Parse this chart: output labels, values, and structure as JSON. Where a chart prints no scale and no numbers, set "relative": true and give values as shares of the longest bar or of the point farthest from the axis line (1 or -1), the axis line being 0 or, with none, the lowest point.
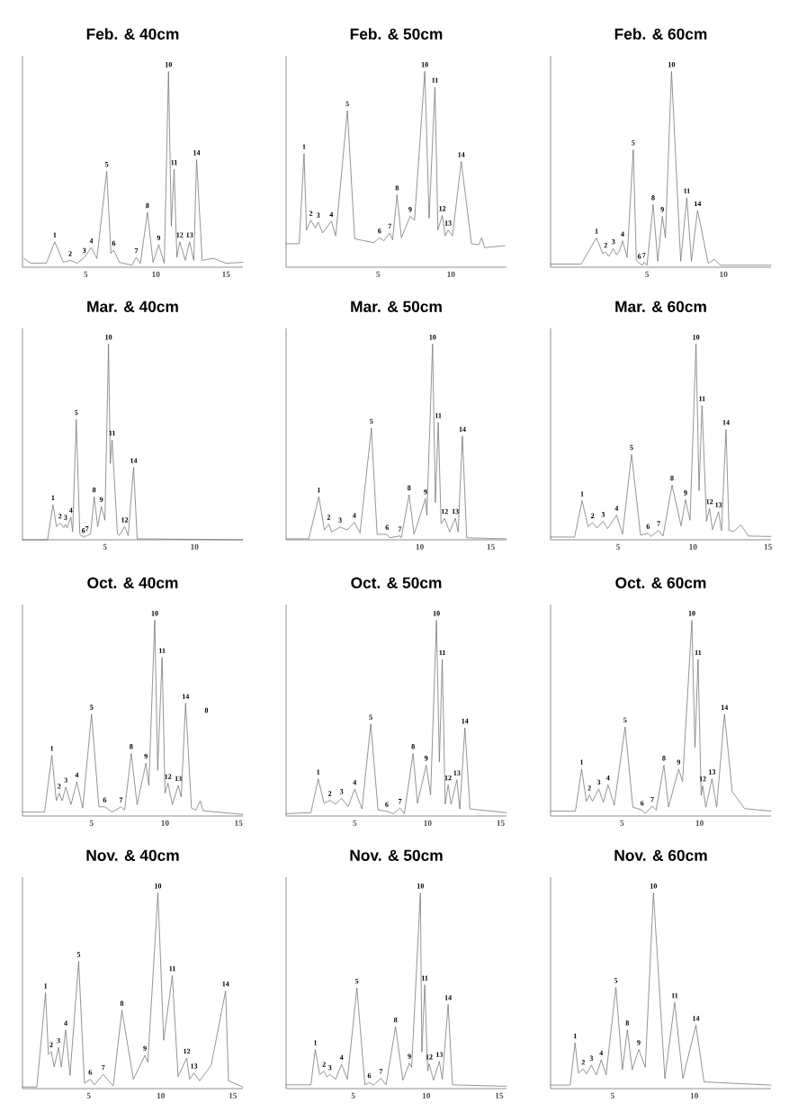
{
  "chart_data": [
    {
      "type": "line",
      "title": "Feb. & 40cm",
      "relative": true,
      "xlim": [
        0.5,
        16.2
      ],
      "xticks": [
        5,
        10,
        15
      ],
      "color": "#6e6e6e",
      "x": [
        0.6,
        1.1,
        2.2,
        2.8,
        3.4,
        3.9,
        4.4,
        4.9,
        5.4,
        5.8,
        6.5,
        6.8,
        7.0,
        7.4,
        8.3,
        8.6,
        8.9,
        9.4,
        9.8,
        10.2,
        10.6,
        10.9,
        11.1,
        11.3,
        11.5,
        11.7,
        12.1,
        12.4,
        12.7,
        12.9,
        13.3,
        14.1,
        15.0,
        16.2
      ],
      "values": [
        0.045,
        0.02,
        0.02,
        0.13,
        0.025,
        0.035,
        0.02,
        0.05,
        0.1,
        0.045,
        0.49,
        0.07,
        0.087,
        0.025,
        0.01,
        0.05,
        0.02,
        0.28,
        0.025,
        0.115,
        0.02,
        1.0,
        0.21,
        0.5,
        0.05,
        0.13,
        0.035,
        0.13,
        0.035,
        0.55,
        0.035,
        0.045,
        0.02,
        0.025
      ],
      "annotations": [
        {
          "text": "1",
          "x": 2.8,
          "y": 0.13
        },
        {
          "text": "2",
          "x": 3.9,
          "y": 0.035
        },
        {
          "text": "3",
          "x": 4.9,
          "y": 0.05
        },
        {
          "text": "4",
          "x": 5.4,
          "y": 0.1
        },
        {
          "text": "5",
          "x": 6.5,
          "y": 0.49
        },
        {
          "text": "6",
          "x": 7.0,
          "y": 0.087
        },
        {
          "text": "7",
          "x": 8.6,
          "y": 0.05
        },
        {
          "text": "8",
          "x": 9.4,
          "y": 0.28
        },
        {
          "text": "9",
          "x": 10.2,
          "y": 0.115
        },
        {
          "text": "10",
          "x": 10.9,
          "y": 1.0
        },
        {
          "text": "11",
          "x": 11.3,
          "y": 0.5
        },
        {
          "text": "12",
          "x": 11.7,
          "y": 0.13
        },
        {
          "text": "13",
          "x": 12.4,
          "y": 0.13
        },
        {
          "text": "14",
          "x": 12.9,
          "y": 0.55
        }
      ]
    },
    {
      "type": "line",
      "title": "Feb. & 50cm",
      "relative": true,
      "xlim": [
        -1.3,
        13.8
      ],
      "xticks": [
        5,
        10
      ],
      "color": "#6e6e6e",
      "x": [
        -1.3,
        -0.4,
        -0.07,
        0.1,
        0.4,
        0.7,
        0.9,
        1.2,
        1.8,
        2.1,
        2.9,
        3.4,
        4.7,
        5.1,
        5.4,
        5.8,
        6.0,
        6.3,
        6.6,
        7.2,
        7.5,
        8.2,
        8.5,
        8.9,
        9.1,
        9.4,
        9.6,
        9.8,
        10.1,
        10.7,
        11.4,
        11.9,
        12.1,
        12.3,
        13.7
      ],
      "values": [
        0.12,
        0.12,
        0.58,
        0.19,
        0.24,
        0.2,
        0.23,
        0.175,
        0.235,
        0.16,
        0.8,
        0.145,
        0.125,
        0.15,
        0.135,
        0.175,
        0.14,
        0.37,
        0.15,
        0.26,
        0.24,
        1.0,
        0.25,
        0.92,
        0.19,
        0.265,
        0.16,
        0.19,
        0.16,
        0.54,
        0.12,
        0.115,
        0.15,
        0.1,
        0.11
      ],
      "annotations": [
        {
          "text": "1",
          "x": -0.07,
          "y": 0.58
        },
        {
          "text": "2",
          "x": 0.4,
          "y": 0.24
        },
        {
          "text": "3",
          "x": 0.9,
          "y": 0.23
        },
        {
          "text": "4",
          "x": 1.8,
          "y": 0.235
        },
        {
          "text": "5",
          "x": 2.9,
          "y": 0.8
        },
        {
          "text": "6",
          "x": 5.1,
          "y": 0.15
        },
        {
          "text": "7",
          "x": 5.8,
          "y": 0.175
        },
        {
          "text": "8",
          "x": 6.3,
          "y": 0.37
        },
        {
          "text": "9",
          "x": 7.2,
          "y": 0.26
        },
        {
          "text": "10",
          "x": 8.2,
          "y": 1.0
        },
        {
          "text": "11",
          "x": 8.9,
          "y": 0.92
        },
        {
          "text": "12",
          "x": 9.4,
          "y": 0.265
        },
        {
          "text": "13",
          "x": 9.8,
          "y": 0.19
        },
        {
          "text": "14",
          "x": 10.7,
          "y": 0.54
        }
      ]
    },
    {
      "type": "line",
      "title": "Feb. & 60cm",
      "relative": true,
      "xlim": [
        -1.3,
        13.1
      ],
      "xticks": [
        5,
        10
      ],
      "color": "#6e6e6e",
      "x": [
        -1.3,
        0.7,
        1.7,
        2.1,
        2.3,
        2.5,
        2.8,
        3.0,
        3.2,
        3.4,
        3.7,
        4.1,
        4.3,
        4.5,
        4.7,
        4.8,
        5.0,
        5.4,
        5.7,
        6.0,
        6.2,
        6.6,
        7.2,
        7.6,
        7.9,
        8.3,
        9.0,
        9.4,
        9.8,
        13.1
      ],
      "values": [
        0.016,
        0.016,
        0.15,
        0.07,
        0.077,
        0.055,
        0.095,
        0.063,
        0.082,
        0.135,
        0.05,
        0.6,
        0.037,
        0.02,
        0.01,
        0.026,
        0.01,
        0.32,
        0.03,
        0.26,
        0.15,
        1.0,
        0.03,
        0.355,
        0.03,
        0.29,
        0.02,
        0.04,
        0.01,
        0.01
      ],
      "annotations": [
        {
          "text": "1",
          "x": 1.7,
          "y": 0.15
        },
        {
          "text": "2",
          "x": 2.3,
          "y": 0.077
        },
        {
          "text": "3",
          "x": 2.8,
          "y": 0.095
        },
        {
          "text": "4",
          "x": 3.4,
          "y": 0.135
        },
        {
          "text": "5",
          "x": 4.1,
          "y": 0.6
        },
        {
          "text": "6",
          "x": 4.5,
          "y": 0.02
        },
        {
          "text": "7",
          "x": 4.8,
          "y": 0.026
        },
        {
          "text": "8",
          "x": 5.4,
          "y": 0.32
        },
        {
          "text": "9",
          "x": 6.0,
          "y": 0.26
        },
        {
          "text": "10",
          "x": 6.6,
          "y": 1.0
        },
        {
          "text": "11",
          "x": 7.6,
          "y": 0.355
        },
        {
          "text": "14",
          "x": 8.3,
          "y": 0.29
        }
      ]
    },
    {
      "type": "line",
      "title": "Mar. & 40cm",
      "relative": true,
      "xlim": [
        0.4,
        12.7
      ],
      "xticks": [
        5,
        10
      ],
      "color": "#6e6e6e",
      "x": [
        0.4,
        1.8,
        2.1,
        2.3,
        2.5,
        2.7,
        2.8,
        2.9,
        3.1,
        3.2,
        3.4,
        3.6,
        3.8,
        4.0,
        4.2,
        4.4,
        4.6,
        4.8,
        5.0,
        5.2,
        5.3,
        5.4,
        5.7,
        5.8,
        6.1,
        6.3,
        6.6,
        6.8,
        12.7
      ],
      "values": [
        0,
        0,
        0.18,
        0.067,
        0.086,
        0.062,
        0.079,
        0.062,
        0.116,
        0.042,
        0.615,
        0.03,
        0.012,
        0.022,
        0.03,
        0.22,
        0.067,
        0.17,
        0.1,
        1.0,
        0.39,
        0.51,
        0.03,
        0.022,
        0.067,
        0.022,
        0.37,
        0.005,
        0
      ],
      "annotations": [
        {
          "text": "1",
          "x": 2.1,
          "y": 0.18
        },
        {
          "text": "2",
          "x": 2.5,
          "y": 0.086
        },
        {
          "text": "3",
          "x": 2.8,
          "y": 0.079
        },
        {
          "text": "4",
          "x": 3.1,
          "y": 0.116
        },
        {
          "text": "5",
          "x": 3.4,
          "y": 0.615
        },
        {
          "text": "6",
          "x": 3.8,
          "y": 0.012
        },
        {
          "text": "7",
          "x": 4.0,
          "y": 0.022
        },
        {
          "text": "8",
          "x": 4.4,
          "y": 0.22
        },
        {
          "text": "9",
          "x": 4.8,
          "y": 0.17
        },
        {
          "text": "10",
          "x": 5.2,
          "y": 1.0
        },
        {
          "text": "11",
          "x": 5.4,
          "y": 0.51
        },
        {
          "text": "12",
          "x": 6.1,
          "y": 0.067
        },
        {
          "text": "14",
          "x": 6.6,
          "y": 0.37
        }
      ]
    },
    {
      "type": "line",
      "title": "Mar. & 50cm",
      "relative": true,
      "xlim": [
        0.6,
        16.1
      ],
      "xticks": [
        10,
        15
      ],
      "color": "#6e6e6e",
      "x": [
        0.6,
        2.2,
        2.9,
        3.3,
        3.6,
        3.8,
        4.4,
        4.9,
        5.4,
        5.8,
        6.6,
        7.0,
        7.7,
        7.9,
        8.6,
        8.7,
        9.25,
        9.6,
        10.4,
        10.5,
        10.9,
        11.1,
        11.3,
        11.5,
        11.75,
        12.1,
        12.5,
        12.7,
        13.0,
        13.3,
        16.1
      ],
      "values": [
        0.005,
        0.005,
        0.22,
        0.05,
        0.08,
        0.04,
        0.065,
        0.05,
        0.09,
        0.035,
        0.57,
        0.028,
        0.028,
        0.01,
        0.02,
        0.01,
        0.23,
        0.028,
        0.21,
        0.125,
        1.0,
        0.19,
        0.6,
        0.083,
        0.11,
        0.04,
        0.11,
        0.04,
        0.53,
        0.01,
        0.005
      ],
      "annotations": [
        {
          "text": "1",
          "x": 2.9,
          "y": 0.22
        },
        {
          "text": "2",
          "x": 3.6,
          "y": 0.08
        },
        {
          "text": "3",
          "x": 4.4,
          "y": 0.065
        },
        {
          "text": "4",
          "x": 5.4,
          "y": 0.09
        },
        {
          "text": "5",
          "x": 6.6,
          "y": 0.57
        },
        {
          "text": "6",
          "x": 7.7,
          "y": 0.028
        },
        {
          "text": "7",
          "x": 8.6,
          "y": 0.02
        },
        {
          "text": "8",
          "x": 9.25,
          "y": 0.23
        },
        {
          "text": "9",
          "x": 10.4,
          "y": 0.21
        },
        {
          "text": "10",
          "x": 10.9,
          "y": 1.0
        },
        {
          "text": "11",
          "x": 11.3,
          "y": 0.6
        },
        {
          "text": "12",
          "x": 11.75,
          "y": 0.11
        },
        {
          "text": "13",
          "x": 12.5,
          "y": 0.11
        },
        {
          "text": "14",
          "x": 13.0,
          "y": 0.53
        }
      ]
    },
    {
      "type": "line",
      "title": "Mar. & 60cm",
      "relative": true,
      "xlim": [
        0.5,
        15.2
      ],
      "xticks": [
        5,
        10,
        15
      ],
      "color": "#6e6e6e",
      "x": [
        0.5,
        2.1,
        2.6,
        3.0,
        3.3,
        3.6,
        4.0,
        4.3,
        4.9,
        5.3,
        5.9,
        6.5,
        7.0,
        7.2,
        7.7,
        8.0,
        8.6,
        9.2,
        9.5,
        9.8,
        10.2,
        10.4,
        10.6,
        10.9,
        11.1,
        11.3,
        11.7,
        11.9,
        12.2,
        12.4,
        12.7,
        13.2,
        13.7,
        15.2
      ],
      "values": [
        0.014,
        0.014,
        0.2,
        0.067,
        0.088,
        0.06,
        0.095,
        0.057,
        0.126,
        0.029,
        0.436,
        0.024,
        0.033,
        0.017,
        0.048,
        0.019,
        0.28,
        0.071,
        0.205,
        0.1,
        1.0,
        0.25,
        0.686,
        0.095,
        0.16,
        0.052,
        0.143,
        0.048,
        0.564,
        0.048,
        0.043,
        0.076,
        0.019,
        0.017
      ],
      "annotations": [
        {
          "text": "1",
          "x": 2.6,
          "y": 0.2
        },
        {
          "text": "2",
          "x": 3.3,
          "y": 0.088
        },
        {
          "text": "3",
          "x": 4.0,
          "y": 0.095
        },
        {
          "text": "4",
          "x": 4.9,
          "y": 0.126
        },
        {
          "text": "5",
          "x": 5.9,
          "y": 0.436
        },
        {
          "text": "6",
          "x": 7.0,
          "y": 0.033
        },
        {
          "text": "7",
          "x": 7.7,
          "y": 0.048
        },
        {
          "text": "8",
          "x": 8.6,
          "y": 0.28
        },
        {
          "text": "9",
          "x": 9.5,
          "y": 0.205
        },
        {
          "text": "10",
          "x": 10.2,
          "y": 1.0
        },
        {
          "text": "11",
          "x": 10.6,
          "y": 0.686
        },
        {
          "text": "12",
          "x": 11.1,
          "y": 0.16
        },
        {
          "text": "13",
          "x": 11.7,
          "y": 0.143
        },
        {
          "text": "14",
          "x": 12.2,
          "y": 0.564
        }
      ]
    },
    {
      "type": "line",
      "title": "Oct. & 40cm",
      "relative": true,
      "xlim": [
        0.3,
        15.3
      ],
      "xticks": [
        5,
        10,
        15
      ],
      "color": "#6e6e6e",
      "x": [
        0.3,
        1.8,
        2.3,
        2.6,
        2.8,
        3.0,
        3.25,
        3.6,
        4.0,
        4.4,
        5.0,
        5.5,
        5.9,
        6.4,
        7.0,
        7.25,
        7.7,
        8.1,
        8.7,
        8.9,
        9.3,
        9.5,
        9.8,
        10.0,
        10.2,
        10.5,
        10.9,
        11.1,
        11.4,
        11.8,
        12.1,
        12.4,
        12.6,
        15.3
      ],
      "values": [
        0.02,
        0.02,
        0.31,
        0.078,
        0.117,
        0.078,
        0.148,
        0.058,
        0.175,
        0.04,
        0.52,
        0.047,
        0.047,
        0.02,
        0.047,
        0.03,
        0.32,
        0.058,
        0.27,
        0.156,
        1.0,
        0.233,
        0.81,
        0.117,
        0.167,
        0.058,
        0.156,
        0.097,
        0.576,
        0.04,
        0.03,
        0.078,
        0.027,
        0.008
      ],
      "annotations": [
        {
          "text": "1",
          "x": 2.3,
          "y": 0.31
        },
        {
          "text": "2",
          "x": 2.8,
          "y": 0.117
        },
        {
          "text": "3",
          "x": 3.25,
          "y": 0.148
        },
        {
          "text": "4",
          "x": 4.0,
          "y": 0.175
        },
        {
          "text": "5",
          "x": 5.0,
          "y": 0.52
        },
        {
          "text": "6",
          "x": 5.9,
          "y": 0.047
        },
        {
          "text": "7",
          "x": 7.0,
          "y": 0.047
        },
        {
          "text": "8",
          "x": 7.7,
          "y": 0.32
        },
        {
          "text": "9",
          "x": 8.7,
          "y": 0.27
        },
        {
          "text": "10",
          "x": 9.3,
          "y": 1.0
        },
        {
          "text": "11",
          "x": 9.8,
          "y": 0.81
        },
        {
          "text": "12",
          "x": 10.2,
          "y": 0.167
        },
        {
          "text": "13",
          "x": 10.9,
          "y": 0.156
        },
        {
          "text": "14",
          "x": 11.4,
          "y": 0.576
        },
        "8"
      ]
    },
    {
      "type": "line",
      "title": "Oct. & 50cm",
      "relative": true,
      "xlim": [
        0.3,
        15.4
      ],
      "xticks": [
        5,
        10,
        15
      ],
      "color": "#6e6e6e",
      "x": [
        0.3,
        2.0,
        2.5,
        2.9,
        3.3,
        3.7,
        4.1,
        4.55,
        5.0,
        5.5,
        6.1,
        6.6,
        7.2,
        7.65,
        8.1,
        8.4,
        9.0,
        9.3,
        9.9,
        10.2,
        10.6,
        10.8,
        11.0,
        11.2,
        11.4,
        11.6,
        12.0,
        12.2,
        12.55,
        12.9,
        15.4
      ],
      "values": [
        0.012,
        0.017,
        0.19,
        0.065,
        0.08,
        0.06,
        0.09,
        0.048,
        0.137,
        0.036,
        0.47,
        0.031,
        0.024,
        0.012,
        0.04,
        0.012,
        0.32,
        0.065,
        0.26,
        0.108,
        1.0,
        0.276,
        0.8,
        0.06,
        0.16,
        0.06,
        0.185,
        0.036,
        0.45,
        0.036,
        0.017
      ],
      "annotations": [
        {
          "text": "1",
          "x": 2.5,
          "y": 0.19
        },
        {
          "text": "2",
          "x": 3.3,
          "y": 0.08
        },
        {
          "text": "3",
          "x": 4.1,
          "y": 0.09
        },
        {
          "text": "4",
          "x": 5.0,
          "y": 0.137
        },
        {
          "text": "5",
          "x": 6.1,
          "y": 0.47
        },
        {
          "text": "6",
          "x": 7.2,
          "y": 0.024
        },
        {
          "text": "7",
          "x": 8.1,
          "y": 0.04
        },
        {
          "text": "8",
          "x": 9.0,
          "y": 0.32
        },
        {
          "text": "9",
          "x": 9.9,
          "y": 0.26
        },
        {
          "text": "10",
          "x": 10.6,
          "y": 1.0
        },
        {
          "text": "11",
          "x": 11.0,
          "y": 0.8
        },
        {
          "text": "12",
          "x": 11.4,
          "y": 0.16
        },
        {
          "text": "13",
          "x": 12.0,
          "y": 0.185
        },
        {
          "text": "14",
          "x": 12.55,
          "y": 0.45
        }
      ]
    },
    {
      "type": "line",
      "title": "Oct. & 60cm",
      "relative": true,
      "xlim": [
        0.4,
        14.6
      ],
      "xticks": [
        5,
        10
      ],
      "color": "#6e6e6e",
      "x": [
        0.4,
        2.0,
        2.4,
        2.7,
        2.9,
        3.1,
        3.5,
        3.8,
        4.1,
        4.5,
        5.2,
        5.7,
        6.3,
        6.5,
        6.95,
        7.2,
        7.7,
        8.0,
        8.65,
        8.9,
        9.5,
        9.7,
        9.9,
        10.1,
        10.2,
        10.4,
        10.8,
        11.1,
        11.6,
        12.1,
        12.9,
        14.6
      ],
      "values": [
        0.025,
        0.025,
        0.24,
        0.075,
        0.108,
        0.075,
        0.138,
        0.07,
        0.16,
        0.055,
        0.455,
        0.045,
        0.03,
        0.0125,
        0.05,
        0.03,
        0.26,
        0.045,
        0.24,
        0.175,
        1.0,
        0.35,
        0.8,
        0.105,
        0.155,
        0.045,
        0.19,
        0.045,
        0.52,
        0.125,
        0.0375,
        0.025
      ],
      "annotations": [
        {
          "text": "1",
          "x": 2.4,
          "y": 0.24
        },
        {
          "text": "2",
          "x": 2.9,
          "y": 0.108
        },
        {
          "text": "3",
          "x": 3.5,
          "y": 0.138
        },
        {
          "text": "4",
          "x": 4.1,
          "y": 0.16
        },
        {
          "text": "5",
          "x": 5.2,
          "y": 0.455
        },
        {
          "text": "6",
          "x": 6.3,
          "y": 0.03
        },
        {
          "text": "7",
          "x": 6.95,
          "y": 0.05
        },
        {
          "text": "8",
          "x": 7.7,
          "y": 0.26
        },
        {
          "text": "9",
          "x": 8.65,
          "y": 0.24
        },
        {
          "text": "10",
          "x": 9.5,
          "y": 1.0
        },
        {
          "text": "11",
          "x": 9.9,
          "y": 0.8
        },
        {
          "text": "12",
          "x": 10.2,
          "y": 0.155
        },
        {
          "text": "13",
          "x": 10.8,
          "y": 0.19
        },
        {
          "text": "14",
          "x": 11.6,
          "y": 0.52
        }
      ]
    },
    {
      "type": "line",
      "title": "Nov. & 40cm",
      "relative": true,
      "xlim": [
        0.4,
        15.7
      ],
      "xticks": [
        5,
        10,
        15
      ],
      "color": "#6e6e6e",
      "x": [
        0.4,
        1.4,
        2.0,
        2.2,
        2.4,
        2.6,
        2.9,
        3.1,
        3.4,
        3.7,
        4.3,
        4.7,
        5.1,
        5.4,
        6.0,
        6.7,
        7.3,
        8.1,
        8.9,
        9.1,
        9.8,
        10.2,
        10.8,
        11.2,
        11.8,
        12.0,
        12.3,
        12.7,
        13.5,
        14.5,
        14.7,
        15.7
      ],
      "values": [
        0.008,
        0.008,
        0.49,
        0.175,
        0.19,
        0.11,
        0.21,
        0.11,
        0.3,
        0.067,
        0.65,
        0.027,
        0.048,
        0.019,
        0.073,
        0.013,
        0.4,
        0.048,
        0.17,
        0.134,
        1.0,
        0.247,
        0.578,
        0.062,
        0.156,
        0.048,
        0.08,
        0.04,
        0.12,
        0.5,
        0.04,
        0.008
      ],
      "annotations": [
        {
          "text": "1",
          "x": 2.0,
          "y": 0.49
        },
        {
          "text": "2",
          "x": 2.4,
          "y": 0.19
        },
        {
          "text": "3",
          "x": 2.9,
          "y": 0.21
        },
        {
          "text": "4",
          "x": 3.4,
          "y": 0.3
        },
        {
          "text": "5",
          "x": 4.3,
          "y": 0.65
        },
        {
          "text": "6",
          "x": 5.1,
          "y": 0.048
        },
        {
          "text": "7",
          "x": 6.0,
          "y": 0.073
        },
        {
          "text": "8",
          "x": 7.3,
          "y": 0.4
        },
        {
          "text": "9",
          "x": 8.9,
          "y": 0.17
        },
        {
          "text": "10",
          "x": 9.8,
          "y": 1.0
        },
        {
          "text": "11",
          "x": 10.8,
          "y": 0.578
        },
        {
          "text": "12",
          "x": 11.8,
          "y": 0.156
        },
        {
          "text": "13",
          "x": 12.3,
          "y": 0.08
        },
        {
          "text": "14",
          "x": 14.5,
          "y": 0.5
        }
      ]
    },
    {
      "type": "line",
      "title": "Nov. & 50cm",
      "relative": true,
      "xlim": [
        0.4,
        15.5
      ],
      "xticks": [
        5,
        10,
        15
      ],
      "color": "#6e6e6e",
      "x": [
        0.4,
        2.1,
        2.4,
        2.7,
        3.0,
        3.2,
        3.4,
        3.8,
        4.2,
        4.6,
        5.25,
        5.8,
        6.1,
        6.4,
        6.9,
        7.25,
        7.9,
        8.4,
        8.85,
        9.0,
        9.6,
        9.7,
        9.9,
        10.1,
        10.2,
        10.5,
        10.9,
        11.1,
        11.5,
        11.8,
        15.5
      ],
      "values": [
        0.019,
        0.019,
        0.2,
        0.072,
        0.089,
        0.06,
        0.072,
        0.048,
        0.124,
        0.048,
        0.514,
        0.019,
        0.031,
        0.017,
        0.053,
        0.019,
        0.316,
        0.043,
        0.13,
        0.108,
        1.0,
        0.187,
        0.53,
        0.09,
        0.127,
        0.043,
        0.139,
        0.048,
        0.43,
        0.019,
        0.012
      ],
      "annotations": [
        {
          "text": "1",
          "x": 2.4,
          "y": 0.2
        },
        {
          "text": "2",
          "x": 3.0,
          "y": 0.089
        },
        {
          "text": "3",
          "x": 3.4,
          "y": 0.072
        },
        {
          "text": "4",
          "x": 4.2,
          "y": 0.124
        },
        {
          "text": "5",
          "x": 5.25,
          "y": 0.514
        },
        {
          "text": "6",
          "x": 6.1,
          "y": 0.031
        },
        {
          "text": "7",
          "x": 6.9,
          "y": 0.053
        },
        {
          "text": "8",
          "x": 7.9,
          "y": 0.316
        },
        {
          "text": "9",
          "x": 8.85,
          "y": 0.13
        },
        {
          "text": "10",
          "x": 9.6,
          "y": 1.0
        },
        {
          "text": "11",
          "x": 9.9,
          "y": 0.53
        },
        {
          "text": "12",
          "x": 10.2,
          "y": 0.127
        },
        {
          "text": "13",
          "x": 10.9,
          "y": 0.139
        },
        {
          "text": "14",
          "x": 11.5,
          "y": 0.43
        }
      ]
    },
    {
      "type": "line",
      "title": "Nov. & 60cm",
      "relative": true,
      "xlim": [
        1.2,
        14.7
      ],
      "xticks": [
        5,
        10
      ],
      "color": "#6e6e6e",
      "x": [
        1.2,
        2.4,
        2.7,
        2.9,
        3.2,
        3.4,
        3.7,
        4.0,
        4.3,
        4.6,
        5.2,
        5.6,
        5.9,
        6.2,
        6.6,
        7.0,
        7.5,
        8.2,
        8.8,
        9.3,
        10.1,
        10.6,
        14.7
      ],
      "values": [
        0.018,
        0.018,
        0.234,
        0.08,
        0.1,
        0.075,
        0.12,
        0.07,
        0.147,
        0.07,
        0.517,
        0.097,
        0.3,
        0.097,
        0.2,
        0.109,
        1.0,
        0.052,
        0.44,
        0.052,
        0.324,
        0.034,
        0.018
      ],
      "annotations": [
        {
          "text": "1",
          "x": 2.7,
          "y": 0.234
        },
        {
          "text": "2",
          "x": 3.2,
          "y": 0.1
        },
        {
          "text": "3",
          "x": 3.7,
          "y": 0.12
        },
        {
          "text": "4",
          "x": 4.3,
          "y": 0.147
        },
        {
          "text": "5",
          "x": 5.2,
          "y": 0.517
        },
        {
          "text": "8",
          "x": 5.9,
          "y": 0.3
        },
        {
          "text": "9",
          "x": 6.6,
          "y": 0.2
        },
        {
          "text": "10",
          "x": 7.5,
          "y": 1.0
        },
        {
          "text": "11",
          "x": 8.8,
          "y": 0.44
        },
        {
          "text": "14",
          "x": 10.1,
          "y": 0.324
        }
      ]
    }
  ]
}
